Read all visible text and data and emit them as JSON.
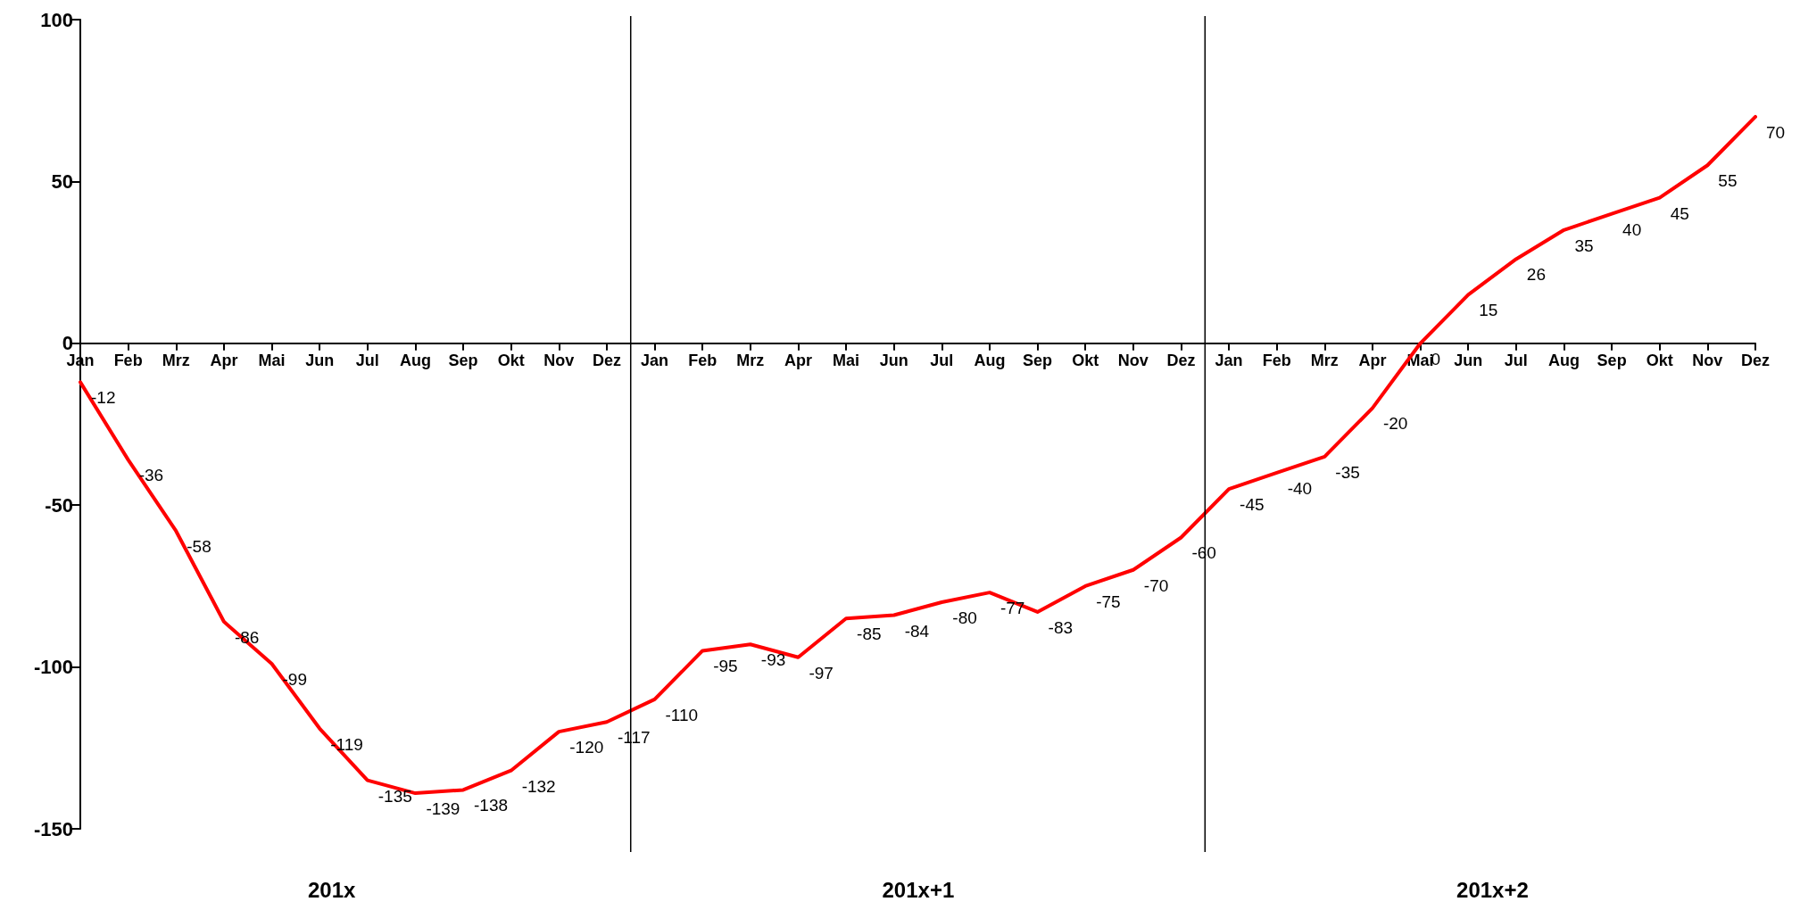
{
  "chart_data": {
    "type": "line",
    "categories": [
      "Jan",
      "Feb",
      "Mrz",
      "Apr",
      "Mai",
      "Jun",
      "Jul",
      "Aug",
      "Sep",
      "Okt",
      "Nov",
      "Dez",
      "Jan",
      "Feb",
      "Mrz",
      "Apr",
      "Mai",
      "Jun",
      "Jul",
      "Aug",
      "Sep",
      "Okt",
      "Nov",
      "Dez",
      "Jan",
      "Feb",
      "Mrz",
      "Apr",
      "Mai",
      "Jun",
      "Jul",
      "Aug",
      "Sep",
      "Okt",
      "Nov",
      "Dez"
    ],
    "series": [
      {
        "color": "#ff0000",
        "values": [
          -12,
          -36,
          -58,
          -86,
          -99,
          -119,
          -135,
          -139,
          -138,
          -132,
          -120,
          -117,
          -110,
          -95,
          -93,
          -97,
          -85,
          -84,
          -80,
          -77,
          -83,
          -75,
          -70,
          -60,
          -45,
          -40,
          -35,
          -20,
          0,
          15,
          26,
          35,
          40,
          45,
          55,
          70
        ]
      }
    ],
    "ylim": [
      -150,
      100
    ],
    "yticks": [
      -150,
      -100,
      -50,
      0,
      50,
      100
    ],
    "grid": false,
    "marker": "none",
    "line_style": "solid",
    "data_labels": true,
    "annotations": [
      "201x",
      "201x+1",
      "201x+2"
    ]
  }
}
